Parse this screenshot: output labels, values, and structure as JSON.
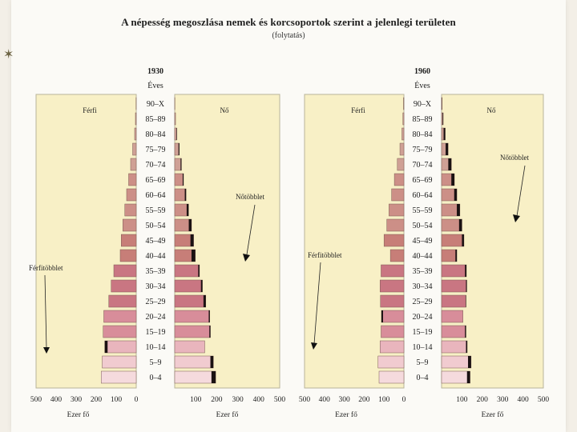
{
  "chart_data": {
    "type": "bar",
    "title": "A népesség megoszlása nemek és korcsoportok szerint a jelenlegi területen",
    "subtitle": "(folytatás)",
    "age_axis_label": "Éves",
    "x_axis_label": "Ezer fő",
    "xlim": [
      0,
      500
    ],
    "x_ticks": [
      "500",
      "400",
      "300",
      "200",
      "100",
      "0",
      "100",
      "200",
      "300",
      "400",
      "500"
    ],
    "categories": [
      "90–X",
      "85–89",
      "80–84",
      "75–79",
      "70–74",
      "65–69",
      "60–64",
      "55–59",
      "50–54",
      "45–49",
      "40–44",
      "35–39",
      "30–34",
      "25–29",
      "20–24",
      "15–19",
      "10–14",
      "5–9",
      "0–4"
    ],
    "series_labels": {
      "male": "Férfi",
      "female_1930": "Nő",
      "female_1960": "Nő"
    },
    "annotations": {
      "male_surplus": "Férfitöbblet",
      "female_surplus": "Nőtöbblet"
    },
    "colors": {
      "panel": "#f8f0c6",
      "frame": "#b9b49a",
      "outline": "#7a5a52",
      "surplus": "#1b1212",
      "text": "#1e1e1e",
      "bar_palette": [
        "#cfa095",
        "#cc8f87",
        "#c77e78",
        "#c97682",
        "#d88d9a",
        "#e9b5bd",
        "#f1cbd0",
        "#f5dadd"
      ]
    },
    "charts": [
      {
        "year": "1930",
        "male": [
          1,
          4,
          8,
          18,
          28,
          38,
          48,
          57,
          67,
          75,
          80,
          112,
          125,
          137,
          162,
          165,
          157,
          170,
          175
        ],
        "female": [
          1,
          4,
          10,
          22,
          32,
          42,
          54,
          66,
          80,
          90,
          98,
          118,
          132,
          148,
          167,
          170,
          143,
          184,
          195
        ]
      },
      {
        "year": "1960",
        "male": [
          2,
          5,
          10,
          20,
          33,
          48,
          62,
          75,
          86,
          100,
          68,
          115,
          120,
          118,
          113,
          115,
          120,
          130,
          125
        ],
        "female": [
          3,
          8,
          18,
          32,
          48,
          63,
          75,
          90,
          100,
          110,
          75,
          122,
          124,
          120,
          105,
          120,
          126,
          145,
          140
        ]
      }
    ]
  }
}
